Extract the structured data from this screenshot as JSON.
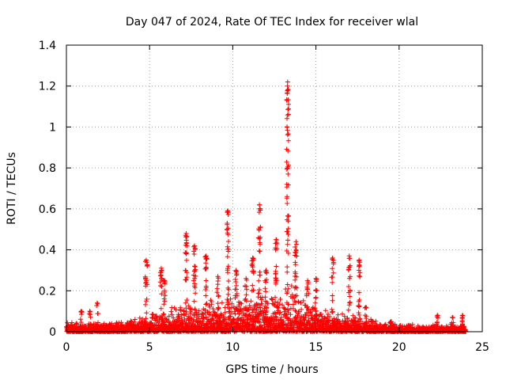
{
  "chart_data": {
    "type": "scatter",
    "title": "Day 047 of 2024, Rate Of TEC Index for receiver wlal",
    "xlabel": "GPS time / hours",
    "ylabel": "ROTI / TECUs",
    "xlim": [
      0,
      25
    ],
    "ylim": [
      0,
      1.4
    ],
    "xticks": [
      0,
      5,
      10,
      15,
      20,
      25
    ],
    "xtick_labels": [
      "0",
      "5",
      "10",
      "15",
      "20",
      "25"
    ],
    "yticks": [
      0,
      0.2,
      0.4,
      0.6,
      0.8,
      1.0,
      1.2,
      1.4
    ],
    "ytick_labels": [
      "0",
      "0.2",
      "0.4",
      "0.6",
      "0.8",
      "1",
      "1.2",
      "1.4"
    ],
    "grid": true,
    "marker": "+",
    "series_color": "#ff0000",
    "series": [
      {
        "name": "ROTI",
        "background_band": {
          "x_range": [
            0,
            24
          ],
          "typical_max": [
            [
              0,
              0.04
            ],
            [
              3,
              0.04
            ],
            [
              4.5,
              0.07
            ],
            [
              6,
              0.09
            ],
            [
              7,
              0.12
            ],
            [
              9,
              0.14
            ],
            [
              10,
              0.15
            ],
            [
              12,
              0.17
            ],
            [
              13.5,
              0.2
            ],
            [
              15,
              0.12
            ],
            [
              16,
              0.09
            ],
            [
              17,
              0.07
            ],
            [
              18.5,
              0.05
            ],
            [
              20,
              0.03
            ],
            [
              24,
              0.03
            ]
          ]
        },
        "spikes": [
          {
            "x": 0.9,
            "peak": 0.1
          },
          {
            "x": 1.4,
            "peak": 0.1
          },
          {
            "x": 1.85,
            "peak": 0.14
          },
          {
            "x": 4.8,
            "peak": 0.35
          },
          {
            "x": 5.7,
            "peak": 0.31
          },
          {
            "x": 5.9,
            "peak": 0.25
          },
          {
            "x": 7.2,
            "peak": 0.48
          },
          {
            "x": 7.7,
            "peak": 0.42
          },
          {
            "x": 8.4,
            "peak": 0.37
          },
          {
            "x": 9.1,
            "peak": 0.27
          },
          {
            "x": 9.7,
            "peak": 0.59
          },
          {
            "x": 10.2,
            "peak": 0.3
          },
          {
            "x": 10.8,
            "peak": 0.26
          },
          {
            "x": 11.2,
            "peak": 0.36
          },
          {
            "x": 11.6,
            "peak": 0.62
          },
          {
            "x": 12.0,
            "peak": 0.3
          },
          {
            "x": 12.6,
            "peak": 0.45
          },
          {
            "x": 13.3,
            "peak": 1.22
          },
          {
            "x": 13.8,
            "peak": 0.44
          },
          {
            "x": 14.5,
            "peak": 0.25
          },
          {
            "x": 15.0,
            "peak": 0.26
          },
          {
            "x": 16.0,
            "peak": 0.36
          },
          {
            "x": 17.0,
            "peak": 0.37
          },
          {
            "x": 17.6,
            "peak": 0.35
          },
          {
            "x": 18.0,
            "peak": 0.12
          },
          {
            "x": 19.5,
            "peak": 0.05
          },
          {
            "x": 22.3,
            "peak": 0.08
          },
          {
            "x": 23.2,
            "peak": 0.07
          },
          {
            "x": 23.8,
            "peak": 0.08
          }
        ]
      }
    ]
  }
}
